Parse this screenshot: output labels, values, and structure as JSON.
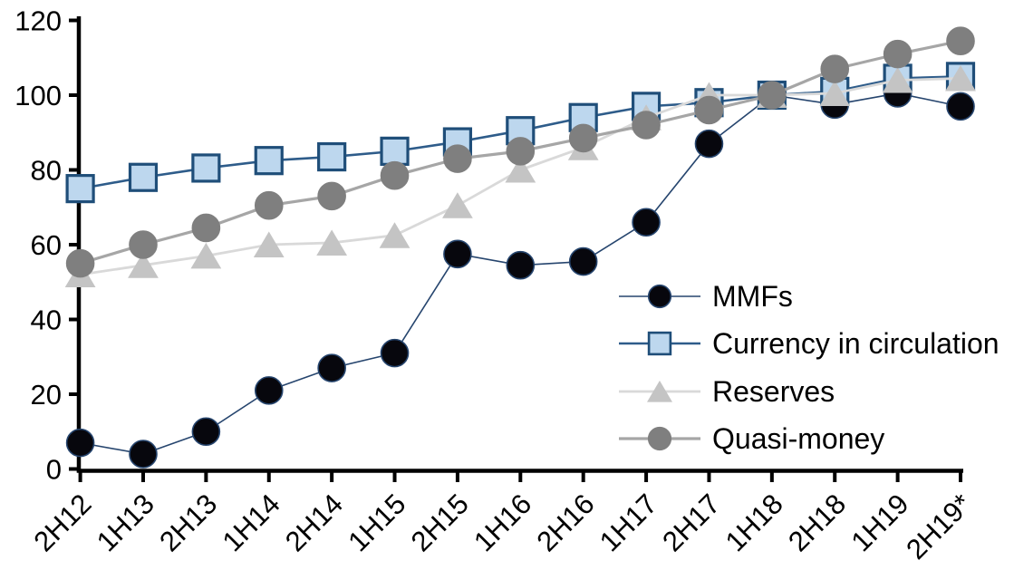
{
  "chart_data": {
    "type": "line",
    "title": "",
    "xlabel": "",
    "ylabel": "",
    "categories": [
      "2H12",
      "1H13",
      "2H13",
      "1H14",
      "2H14",
      "1H15",
      "2H15",
      "1H16",
      "2H16",
      "1H17",
      "2H17",
      "1H18",
      "2H18",
      "1H19",
      "2H19*"
    ],
    "series": [
      {
        "name": "MMFs",
        "marker": "circle",
        "line_color": "#26456E",
        "fill_color": "#07070D",
        "edge_color": "#26456E",
        "line_width": 1.6,
        "values": [
          7,
          4,
          10,
          21,
          27,
          31,
          57.5,
          54.5,
          55.5,
          66,
          87,
          100,
          97.5,
          100.5,
          97
        ]
      },
      {
        "name": "Currency in circulation",
        "marker": "square",
        "line_color": "#2E5C8A",
        "fill_color": "#BDD7EE",
        "edge_color": "#1F4E79",
        "line_width": 2.6,
        "values": [
          75,
          78,
          80.5,
          82.5,
          83.5,
          85,
          87.5,
          90.5,
          94,
          97,
          98,
          100,
          101,
          104.5,
          105
        ]
      },
      {
        "name": "Reserves",
        "marker": "triangle",
        "line_color": "#D9D9D9",
        "fill_color": "#C4C4C4",
        "edge_color": "#C4C4C4",
        "line_width": 2.8,
        "values": [
          52,
          54.5,
          57,
          60,
          60.5,
          62.5,
          70.5,
          80,
          86,
          94,
          100,
          100,
          100.5,
          104,
          104.5
        ]
      },
      {
        "name": "Quasi-money",
        "marker": "circle",
        "line_color": "#A6A6A6",
        "fill_color": "#7F7F7F",
        "edge_color": "#7F7F7F",
        "line_width": 3.2,
        "values": [
          55,
          60,
          64.5,
          70.5,
          73,
          78.5,
          83,
          85,
          88.5,
          92,
          96,
          100,
          107,
          111,
          114.5
        ]
      }
    ],
    "ylim": [
      0,
      120
    ],
    "yticks": [
      0,
      20,
      40,
      60,
      80,
      100,
      120
    ],
    "grid": false,
    "axis_color": "#000000",
    "legend_position": "inside-right",
    "legend_items": [
      "MMFs",
      "Currency in circulation",
      "Reserves",
      "Quasi-money"
    ]
  }
}
